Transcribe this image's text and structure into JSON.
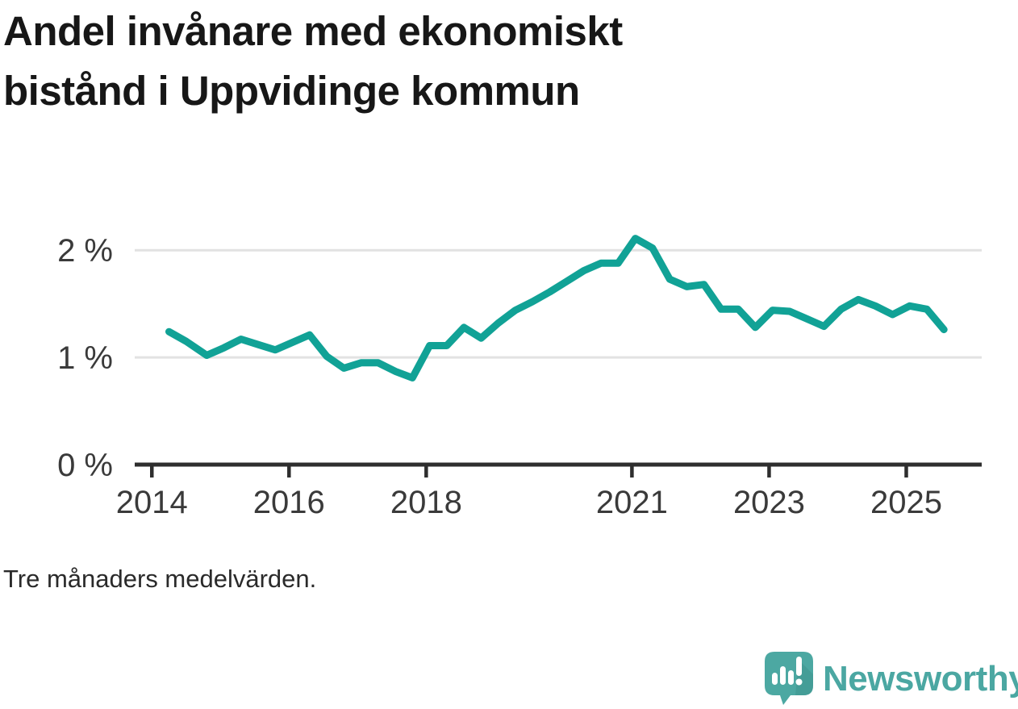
{
  "title_lines": [
    "Andel invånare med ekonomiskt",
    "bistånd i Uppvidinge kommun"
  ],
  "footnote": "Tre månaders medelvärden.",
  "branding": {
    "name": "Newsworthy",
    "icon": "newsworthy-speech-bubble-bar-chart-icon",
    "brand_color": "#4ba7a2",
    "icon_color": "#4ca8a2"
  },
  "chart_data": {
    "type": "line",
    "title": "Andel invånare med ekonomiskt bistånd i Uppvidinge kommun",
    "note": "Tre månaders medelvärden.",
    "unit": "%",
    "xlabel": "",
    "ylabel": "",
    "xlim": [
      2013.75,
      2026.1
    ],
    "ylim": [
      0,
      2.25
    ],
    "grid": "horizontal",
    "legend": "none",
    "x_ticks": [
      {
        "value": 2014,
        "label": "2014"
      },
      {
        "value": 2016,
        "label": "2016"
      },
      {
        "value": 2018,
        "label": "2018"
      },
      {
        "value": 2021,
        "label": "2021"
      },
      {
        "value": 2023,
        "label": "2023"
      },
      {
        "value": 2025,
        "label": "2025"
      }
    ],
    "y_ticks": [
      {
        "value": 0,
        "label": "0 %"
      },
      {
        "value": 1,
        "label": "1 %"
      },
      {
        "value": 2,
        "label": "2 %"
      }
    ],
    "colors": {
      "line": "#11a296",
      "grid": "#e2e2e2",
      "axis": "#2e2e2e",
      "tick_label": "#3a3a3a"
    },
    "series": [
      {
        "name": "Andel invånare med ekonomiskt bistånd (%)",
        "color": "#11a296",
        "points": [
          [
            2014.25,
            1.24
          ],
          [
            2014.5,
            1.15
          ],
          [
            2014.8,
            1.02
          ],
          [
            2015.05,
            1.09
          ],
          [
            2015.3,
            1.17
          ],
          [
            2015.55,
            1.12
          ],
          [
            2015.8,
            1.07
          ],
          [
            2016.05,
            1.14
          ],
          [
            2016.3,
            1.21
          ],
          [
            2016.55,
            1.01
          ],
          [
            2016.8,
            0.9
          ],
          [
            2017.05,
            0.95
          ],
          [
            2017.3,
            0.95
          ],
          [
            2017.55,
            0.87
          ],
          [
            2017.8,
            0.81
          ],
          [
            2018.05,
            1.11
          ],
          [
            2018.3,
            1.11
          ],
          [
            2018.55,
            1.28
          ],
          [
            2018.8,
            1.18
          ],
          [
            2019.05,
            1.32
          ],
          [
            2019.3,
            1.44
          ],
          [
            2019.55,
            1.52
          ],
          [
            2019.8,
            1.61
          ],
          [
            2020.05,
            1.71
          ],
          [
            2020.3,
            1.81
          ],
          [
            2020.55,
            1.88
          ],
          [
            2020.8,
            1.88
          ],
          [
            2021.05,
            2.11
          ],
          [
            2021.3,
            2.02
          ],
          [
            2021.55,
            1.73
          ],
          [
            2021.8,
            1.66
          ],
          [
            2022.05,
            1.68
          ],
          [
            2022.3,
            1.45
          ],
          [
            2022.55,
            1.45
          ],
          [
            2022.8,
            1.28
          ],
          [
            2023.05,
            1.44
          ],
          [
            2023.3,
            1.43
          ],
          [
            2023.55,
            1.36
          ],
          [
            2023.8,
            1.29
          ],
          [
            2024.05,
            1.45
          ],
          [
            2024.3,
            1.54
          ],
          [
            2024.55,
            1.48
          ],
          [
            2024.8,
            1.4
          ],
          [
            2025.05,
            1.48
          ],
          [
            2025.3,
            1.45
          ],
          [
            2025.55,
            1.26
          ]
        ]
      }
    ]
  }
}
